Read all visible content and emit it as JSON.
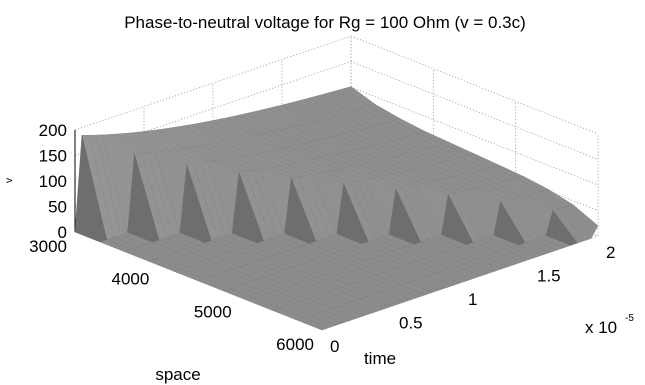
{
  "chart_data": {
    "type": "surface",
    "title": "Phase-to-neutral voltage for Rg = 100 Ohm (v = 0.3c)",
    "xlabel": "time",
    "ylabel": "space",
    "zlabel": "v",
    "x_exponent_label": "x 10",
    "x_exponent_power": "-5",
    "xlim": [
      0,
      2e-05
    ],
    "ylim": [
      3000,
      6000
    ],
    "zlim": [
      0,
      200
    ],
    "x_ticks": [
      "0",
      "0.5",
      "1",
      "1.5",
      "2"
    ],
    "y_ticks": [
      "3000",
      "4000",
      "5000",
      "6000"
    ],
    "z_ticks": [
      "0",
      "50",
      "100",
      "150",
      "200"
    ],
    "grid": true,
    "surface_color": "#8a8a8a",
    "ridge_profile_space": [
      3000,
      3300,
      3600,
      3900,
      4200,
      4500,
      4800,
      5100,
      5400,
      5700,
      6000
    ],
    "ridge_peak_time_e5": [
      0.05,
      0.25,
      0.45,
      0.65,
      0.85,
      1.05,
      1.25,
      1.45,
      1.65,
      1.85,
      2.0
    ],
    "ridge_peak_voltage": [
      185,
      150,
      130,
      115,
      105,
      95,
      85,
      75,
      62,
      45,
      20
    ]
  }
}
